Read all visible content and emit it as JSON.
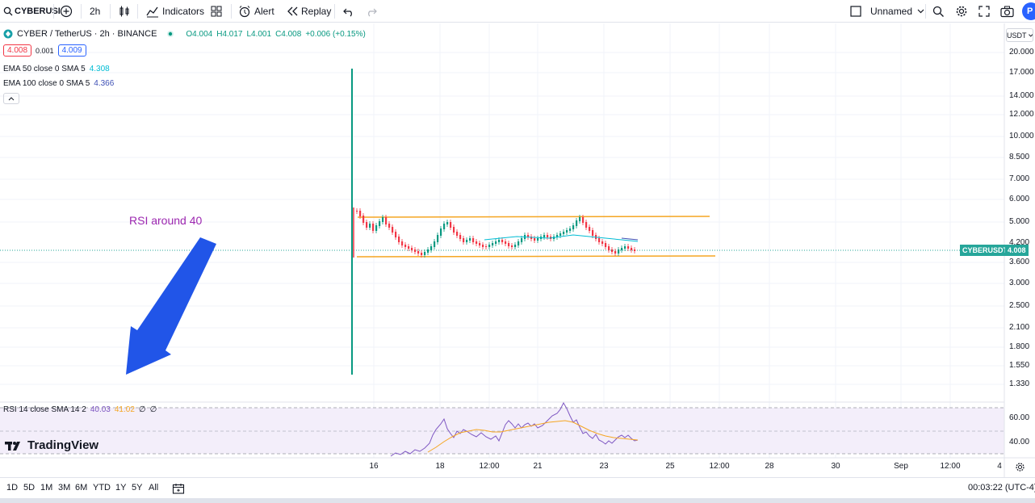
{
  "toolbar": {
    "symbol": "CYBERUSI",
    "interval": "2h",
    "indicators_label": "Indicators",
    "alert_label": "Alert",
    "replay_label": "Replay",
    "layout_name": "Unnamed",
    "profile_initial": "P"
  },
  "legend": {
    "symbol_title": "CYBER / TetherUS · 2h · BINANCE",
    "open": "O4.004",
    "high": "H4.017",
    "low": "L4.001",
    "close": "C4.008",
    "change": "+0.006 (+0.15%)",
    "bid": "4.008",
    "spread": "0.001",
    "ask": "4.009",
    "ema50_label": "EMA 50 close 0 SMA 5",
    "ema50_value": "4.308",
    "ema100_label": "EMA 100 close 0 SMA 5",
    "ema100_value": "4.366"
  },
  "annotation": "RSI around 40",
  "price_axis": {
    "currency": "USDT",
    "labels": [
      "20.000",
      "17.000",
      "14.000",
      "12.000",
      "10.000",
      "8.500",
      "7.000",
      "6.000",
      "5.000",
      "4.200",
      "3.600",
      "3.000",
      "2.500",
      "2.100",
      "1.800",
      "1.550",
      "1.330"
    ],
    "current_symbol": "CYBERUSDT",
    "current_price": "4.008"
  },
  "rsi": {
    "label": "RSI 14 close SMA 14 2",
    "rsi_value": "40.03",
    "sma_value": "41.02",
    "extra1": "∅",
    "extra2": "∅",
    "axis_labels": [
      "60.00",
      "40.00"
    ]
  },
  "logo_text": "TradingView",
  "time_axis": [
    "16",
    "18",
    "12:00",
    "21",
    "23",
    "25",
    "12:00",
    "28",
    "30",
    "Sep",
    "12:00",
    "4"
  ],
  "bottom": {
    "ranges": [
      "1D",
      "5D",
      "1M",
      "3M",
      "6M",
      "YTD",
      "1Y",
      "5Y",
      "All"
    ],
    "clock": "00:03:22 (UTC-4)"
  },
  "colors": {
    "up": "#089981",
    "down": "#f23645",
    "ema50": "#00bcd4",
    "ema100": "#3f51b5",
    "rsi_line": "#7e57c2",
    "rsi_sma": "#f5a623",
    "annotation": "#9c27b0",
    "arrow": "#2155e8",
    "channel": "#f5a623",
    "price_tag": "#26a69a"
  }
}
